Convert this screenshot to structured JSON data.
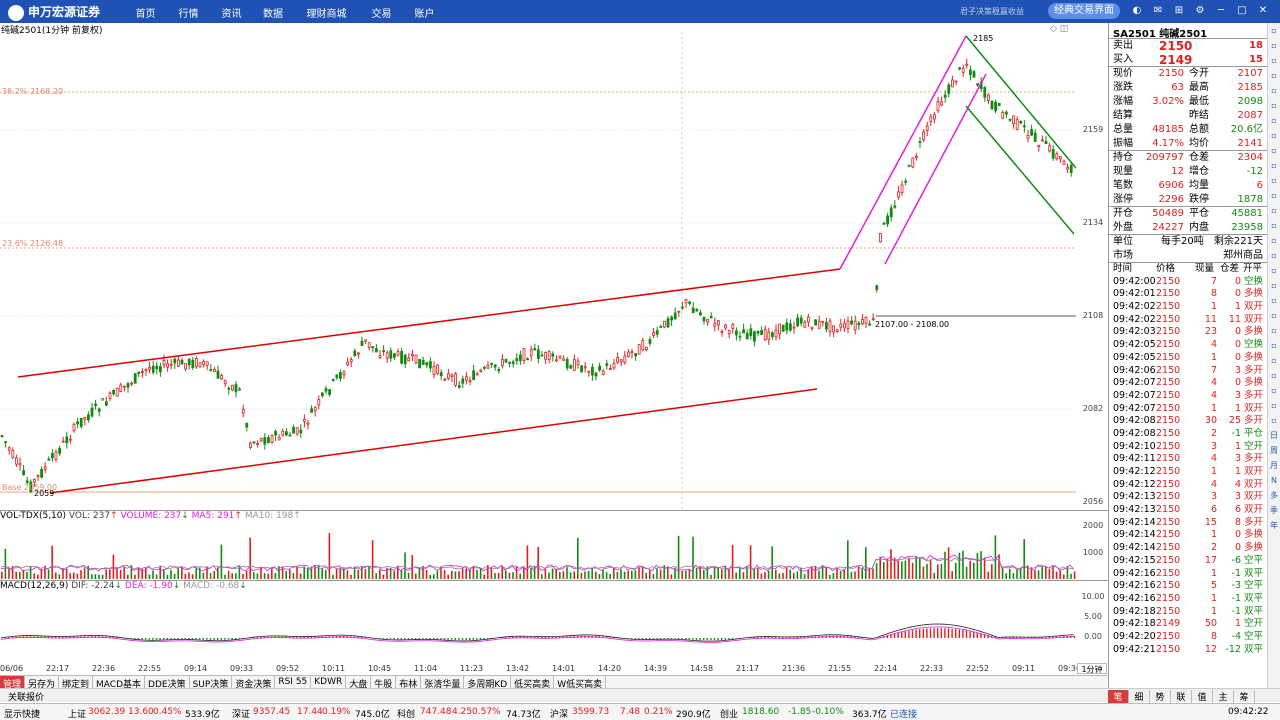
{
  "app": {
    "logo_text": "申万宏源证券",
    "slogan": "君子决策稳赢收益",
    "classic_btn": "经典交易界面"
  },
  "nav": [
    "首页",
    "行情",
    "资讯",
    "数据",
    "理财商城",
    "交易",
    "账户"
  ],
  "chart": {
    "window_title": "纯碱2501(1分钟 前复权)",
    "price_labels": [
      "2159",
      "2134",
      "2108",
      "2082",
      "2056"
    ],
    "fib_382": "38.2% 2168.20",
    "fib_236": "23.6% 2126.48",
    "fib_base": "Base 2059.00",
    "high_label": "2185",
    "low_label": "2059",
    "range_label": "2107.00 - 2108.00",
    "ctrl_icons": "◇ ◫"
  },
  "volume": {
    "name": "VOL-TDX(5,10)",
    "vol": "VOL: 237",
    "volume": "VOLUME: 237",
    "ma5": "MA5: 291",
    "ma10": "MA10: 198",
    "ticks": [
      "2000",
      "1000"
    ],
    "up_arrow": "↑",
    "down_arrow": "↓"
  },
  "macd": {
    "name": "MACD(12,26,9)",
    "dif": "DIF: -2.24",
    "dea": "DEA: -1.90",
    "macd": "MACD: -0.68",
    "ticks": [
      "10.00",
      "5.00",
      "0.00"
    ]
  },
  "time_axis": [
    "06/06",
    "22:17",
    "22:36",
    "22:55",
    "09:14",
    "09:33",
    "09:52",
    "10:11",
    "10:45",
    "11:04",
    "11:23",
    "13:42",
    "14:01",
    "14:20",
    "14:39",
    "14:58",
    "21:17",
    "21:36",
    "21:55",
    "22:14",
    "22:33",
    "22:52",
    "09:11",
    "09:30"
  ],
  "period": "1分钟",
  "zoom": "+ -",
  "tabs": [
    "管理",
    "另存为",
    "绑定到",
    "MACD基本",
    "DDE决策",
    "SUP决策",
    "资金决策",
    "RSI 55",
    "KDWR",
    "大盘",
    "牛股",
    "布林",
    "张清华量",
    "多周期KD",
    "低买高卖",
    "W低买高卖"
  ],
  "subbar": "关联报价",
  "status": {
    "quick": "显示快捷",
    "sh_name": "上证",
    "sh_val": "3062.39",
    "sh_chg": "13.60",
    "sh_pct": "0.45%",
    "sh_amt": "533.9亿",
    "sz_name": "深证",
    "sz_val": "9357.45",
    "sz_chg": "17.44",
    "sz_pct": "0.19%",
    "sz_amt": "745.0亿",
    "kc_name": "科创",
    "kc_val": "747.48",
    "kc_chg": "4.25",
    "kc_pct": "0.57%",
    "kc_amt": "74.73亿",
    "hs_name": "沪深",
    "hs_val": "3599.73",
    "hs_chg": "7.48",
    "hs_pct": "0.21%",
    "hs_amt": "290.9亿",
    "cy_name": "创业",
    "cy_val": "1818.60",
    "cy_chg": "-1.85",
    "cy_pct": "-0.10%",
    "cy_amt": "363.7亿",
    "conn": "已连接",
    "time": "09:42:22"
  },
  "quote": {
    "title": "SA2501 纯碱2501",
    "sell": {
      "label": "卖出",
      "price": "2150",
      "vol": "18"
    },
    "buy": {
      "label": "买入",
      "price": "2149",
      "vol": "15"
    },
    "rows": [
      [
        "现价",
        "2150",
        "今开",
        "2107"
      ],
      [
        "涨跌",
        "63",
        "最高",
        "2185"
      ],
      [
        "涨幅",
        "3.02%",
        "最低",
        "2098"
      ],
      [
        "结算",
        "",
        "昨结",
        "2087"
      ],
      [
        "总量",
        "48185",
        "总额",
        "20.6亿"
      ],
      [
        "振幅",
        "4.17%",
        "均价",
        "2141"
      ]
    ],
    "rows2": [
      [
        "持仓",
        "209797",
        "仓差",
        "2304"
      ],
      [
        "现量",
        "12",
        "增仓",
        "-12"
      ],
      [
        "笔数",
        "6906",
        "均量",
        "6"
      ],
      [
        "涨停",
        "2296",
        "跌停",
        "1878"
      ]
    ],
    "rows3": [
      [
        "开仓",
        "50489",
        "平仓",
        "45881"
      ],
      [
        "外盘",
        "24227",
        "内盘",
        "23958"
      ]
    ],
    "unit_label": "单位",
    "unit_val": "每手20吨",
    "remain": "剩余221天",
    "market_label": "市场",
    "market_val": "郑州商品",
    "tick_header": [
      "时间",
      "价格",
      "现量",
      "仓差",
      "开平"
    ]
  },
  "ticks": [
    [
      "09:42:00",
      "2150",
      "7",
      "0",
      "空换"
    ],
    [
      "09:42:01",
      "2150",
      "8",
      "0",
      "多换"
    ],
    [
      "09:42:02",
      "2150",
      "1",
      "1",
      "双开"
    ],
    [
      "09:42:02",
      "2150",
      "11",
      "11",
      "双开"
    ],
    [
      "09:42:03",
      "2150",
      "23",
      "0",
      "多换"
    ],
    [
      "09:42:05",
      "2150",
      "4",
      "0",
      "空换"
    ],
    [
      "09:42:05",
      "2150",
      "1",
      "0",
      "多换"
    ],
    [
      "09:42:06",
      "2150",
      "7",
      "3",
      "多开"
    ],
    [
      "09:42:07",
      "2150",
      "4",
      "0",
      "多换"
    ],
    [
      "09:42:07",
      "2150",
      "4",
      "3",
      "多开"
    ],
    [
      "09:42:07",
      "2150",
      "1",
      "1",
      "双开"
    ],
    [
      "09:42:08",
      "2150",
      "30",
      "25",
      "多开"
    ],
    [
      "09:42:08",
      "2150",
      "2",
      "-1",
      "平仓"
    ],
    [
      "09:42:10",
      "2150",
      "3",
      "1",
      "空开"
    ],
    [
      "09:42:11",
      "2150",
      "4",
      "3",
      "多开"
    ],
    [
      "09:42:12",
      "2150",
      "1",
      "1",
      "双开"
    ],
    [
      "09:42:12",
      "2150",
      "4",
      "4",
      "双开"
    ],
    [
      "09:42:13",
      "2150",
      "3",
      "3",
      "双开"
    ],
    [
      "09:42:13",
      "2150",
      "6",
      "6",
      "双开"
    ],
    [
      "09:42:14",
      "2150",
      "15",
      "8",
      "多开"
    ],
    [
      "09:42:14",
      "2150",
      "1",
      "0",
      "多换"
    ],
    [
      "09:42:14",
      "2150",
      "2",
      "0",
      "多换"
    ],
    [
      "09:42:15",
      "2150",
      "17",
      "-6",
      "空平"
    ],
    [
      "09:42:16",
      "2150",
      "1",
      "-1",
      "双平"
    ],
    [
      "09:42:16",
      "2150",
      "5",
      "-3",
      "空平"
    ],
    [
      "09:42:16",
      "2150",
      "1",
      "-1",
      "双平"
    ],
    [
      "09:42:18",
      "2150",
      "1",
      "-1",
      "双平"
    ],
    [
      "09:42:18",
      "2149",
      "50",
      "1",
      "空开"
    ],
    [
      "09:42:20",
      "2150",
      "8",
      "-4",
      "空平"
    ],
    [
      "09:42:21",
      "2150",
      "12",
      "-12",
      "双平"
    ]
  ],
  "sidebar": [
    "日",
    "周",
    "月",
    "N",
    "多",
    "季",
    "年"
  ],
  "bottom_tabs": [
    "笔",
    "细",
    "势",
    "联",
    "值",
    "主",
    "筹"
  ],
  "colors": {
    "up": "#e02020",
    "down": "#138a13",
    "accent": "#1f52b4",
    "pink": "#e020e0"
  }
}
